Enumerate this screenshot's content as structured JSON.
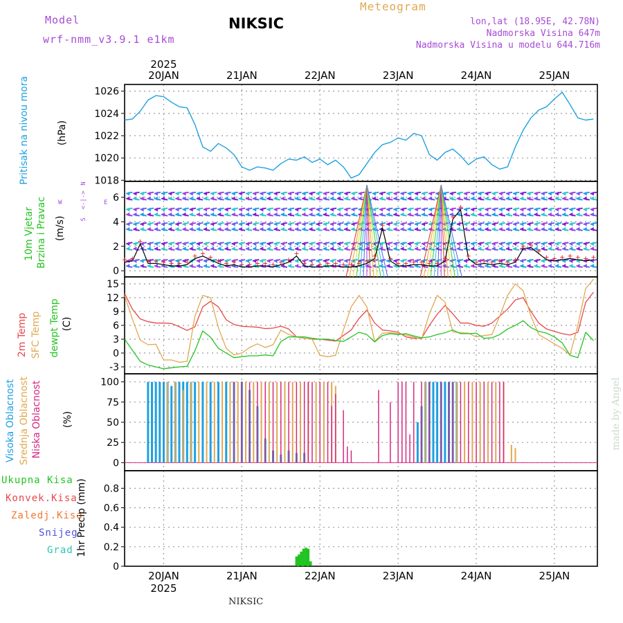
{
  "header": {
    "model_label": "Model",
    "model_name": "wrf-nmm_v3.9.1 e1km",
    "station": "NIKSIC",
    "meteogram": "Meteogram",
    "lonlat": "lon,lat (18.95E, 42.78N)",
    "elevation": "Nadmorska Visina 647m",
    "model_elevation": "Nadmorska Visina u modelu 644.716m",
    "footer_station": "NIKSIC",
    "watermark": "made by Angel",
    "colors": {
      "purple": "#a64ad6",
      "orange": "#e0a850",
      "black": "#000000"
    }
  },
  "time_axis": {
    "year_top": "2025",
    "year_bottom": "2025",
    "day_labels": [
      "20JAN",
      "21JAN",
      "22JAN",
      "23JAN",
      "24JAN",
      "25JAN"
    ],
    "day_positions": [
      0,
      1,
      2,
      3,
      4,
      5
    ],
    "range": [
      -0.5,
      5.55
    ]
  },
  "panels": {
    "pressure": {
      "ylabel": "Pritisak na nivou mora",
      "unit": "(hPa)",
      "ticks": [
        "1026",
        "1024",
        "1022",
        "1020",
        "1018"
      ],
      "tick_values": [
        1026,
        1024,
        1022,
        1020,
        1018
      ],
      "ylim": [
        1017.9,
        1026.6
      ],
      "color": "#1ea0e0"
    },
    "wind": {
      "ylabel1": "10m Vjetar",
      "ylabel2": "Brzina i Pravac",
      "unit": "(m/s)",
      "compass": {
        "n": "N",
        "e": "E",
        "w": "W",
        "arrow": "<-|->",
        "s": "S"
      },
      "ticks": [
        "6",
        "4",
        "2",
        "0"
      ],
      "tick_values": [
        6,
        4,
        2,
        0
      ],
      "ylim": [
        -0.5,
        7.3
      ],
      "colors": [
        "#1ea0e0",
        "#7f1fd6",
        "#2cc6c6",
        "#9b3fe0",
        "#6a5cf0"
      ],
      "line_color": "#000000",
      "gust_color": "#e03030"
    },
    "temperature": {
      "label_2m": "2m Temp",
      "label_sfc": "SFC Temp",
      "label_dew": "dewpt Temp",
      "unit": "(C)",
      "ticks": [
        "15",
        "12",
        "9",
        "6",
        "3",
        "0",
        "-3"
      ],
      "tick_values": [
        15,
        12,
        9,
        6,
        3,
        0,
        -3
      ],
      "ylim": [
        -4.5,
        16.5
      ],
      "colors": {
        "t2m": "#e8474a",
        "sfc": "#e0a850",
        "dew": "#22c422"
      }
    },
    "clouds": {
      "label_high": "Visoka Oblacnost",
      "label_mid": "Srednja Oblacnost",
      "label_low": "Niska Oblacnost",
      "unit": "(%)",
      "ticks": [
        "100",
        "75",
        "50",
        "25",
        "0"
      ],
      "tick_values": [
        100,
        75,
        50,
        25,
        0
      ],
      "ylim": [
        -10,
        110
      ],
      "colors": {
        "high": "#1ea0e0",
        "mid": "#e0a850",
        "low": "#d6287f"
      }
    },
    "precip": {
      "label_total": "Ukupna Kisa",
      "label_conv": "Konvek.Kisa",
      "label_frz": "Zaledj.Kisa",
      "label_snow": "Snijeg",
      "label_grad": "Grad",
      "unit": "1hr Precip (mm)",
      "ticks": [
        "0.8",
        "0.6",
        "0.4",
        "0.2",
        "0"
      ],
      "tick_values": [
        0.8,
        0.6,
        0.4,
        0.2,
        0
      ],
      "ylim": [
        0,
        0.98
      ],
      "colors": {
        "total": "#22c422",
        "conv": "#e8474a",
        "frz": "#f07830",
        "snow": "#5050e0",
        "grad": "#2cc6b0"
      }
    }
  },
  "chart_data": {
    "type": "line",
    "x_units": "days (0 = 20JAN 00h)",
    "pressure": {
      "x": [
        -0.5,
        -0.4,
        -0.3,
        -0.2,
        -0.1,
        0.0,
        0.1,
        0.2,
        0.3,
        0.4,
        0.5,
        0.6,
        0.7,
        0.8,
        0.9,
        1.0,
        1.1,
        1.2,
        1.3,
        1.4,
        1.5,
        1.6,
        1.7,
        1.8,
        1.9,
        2.0,
        2.1,
        2.2,
        2.3,
        2.4,
        2.5,
        2.6,
        2.7,
        2.8,
        2.9,
        3.0,
        3.1,
        3.2,
        3.3,
        3.4,
        3.5,
        3.6,
        3.7,
        3.8,
        3.9,
        4.0,
        4.1,
        4.2,
        4.3,
        4.4,
        4.5,
        4.6,
        4.7,
        4.8,
        4.9,
        5.0,
        5.1,
        5.2,
        5.3,
        5.4,
        5.5
      ],
      "values": [
        1023.4,
        1023.5,
        1024.2,
        1025.2,
        1025.6,
        1025.5,
        1025.0,
        1024.6,
        1024.5,
        1023.0,
        1021.0,
        1020.6,
        1021.3,
        1020.9,
        1020.3,
        1019.2,
        1018.9,
        1019.2,
        1019.1,
        1018.9,
        1019.5,
        1019.9,
        1019.8,
        1020.1,
        1019.6,
        1019.9,
        1019.4,
        1019.8,
        1019.2,
        1018.2,
        1018.5,
        1019.5,
        1020.5,
        1021.2,
        1021.4,
        1021.8,
        1021.6,
        1022.2,
        1022.0,
        1020.3,
        1019.8,
        1020.5,
        1020.8,
        1020.2,
        1019.4,
        1019.9,
        1020.1,
        1019.4,
        1019.0,
        1019.2,
        1021.0,
        1022.5,
        1023.6,
        1024.3,
        1024.6,
        1025.3,
        1025.9,
        1024.8,
        1023.6,
        1023.4,
        1023.5
      ]
    },
    "wind_speed": {
      "x": [
        -0.5,
        -0.4,
        -0.3,
        -0.2,
        -0.1,
        0.0,
        0.1,
        0.2,
        0.3,
        0.4,
        0.5,
        0.6,
        0.7,
        0.8,
        0.9,
        1.0,
        1.1,
        1.2,
        1.3,
        1.4,
        1.5,
        1.6,
        1.7,
        1.8,
        1.9,
        2.0,
        2.1,
        2.2,
        2.3,
        2.4,
        2.5,
        2.6,
        2.7,
        2.8,
        2.9,
        3.0,
        3.1,
        3.2,
        3.3,
        3.4,
        3.5,
        3.6,
        3.7,
        3.8,
        3.9,
        4.0,
        4.1,
        4.2,
        4.3,
        4.4,
        4.5,
        4.6,
        4.7,
        4.8,
        4.9,
        5.0,
        5.1,
        5.2,
        5.3,
        5.4,
        5.5
      ],
      "values": [
        0.7,
        0.8,
        2.2,
        0.6,
        0.6,
        0.5,
        0.4,
        0.4,
        0.5,
        1.0,
        1.2,
        0.9,
        0.6,
        0.4,
        0.5,
        0.3,
        0.3,
        0.4,
        0.4,
        0.3,
        0.5,
        0.7,
        1.2,
        0.4,
        0.3,
        0.3,
        0.4,
        0.4,
        0.3,
        0.3,
        0.4,
        0.6,
        1.0,
        3.5,
        0.8,
        0.4,
        0.4,
        0.5,
        0.5,
        0.4,
        0.4,
        0.8,
        4.2,
        5.0,
        1.0,
        0.5,
        0.6,
        0.5,
        0.6,
        0.5,
        0.7,
        1.8,
        1.9,
        1.4,
        0.9,
        0.8,
        0.9,
        1.0,
        0.9,
        0.8,
        0.9
      ]
    },
    "temperature": {
      "x": [
        -0.5,
        -0.4,
        -0.3,
        -0.2,
        -0.1,
        0.0,
        0.1,
        0.2,
        0.3,
        0.4,
        0.5,
        0.6,
        0.7,
        0.8,
        0.9,
        1.0,
        1.1,
        1.2,
        1.3,
        1.4,
        1.5,
        1.6,
        1.7,
        1.8,
        1.9,
        2.0,
        2.1,
        2.2,
        2.3,
        2.4,
        2.5,
        2.6,
        2.7,
        2.8,
        2.9,
        3.0,
        3.1,
        3.2,
        3.3,
        3.4,
        3.5,
        3.6,
        3.7,
        3.8,
        3.9,
        4.0,
        4.1,
        4.2,
        4.3,
        4.4,
        4.5,
        4.6,
        4.7,
        4.8,
        4.9,
        5.0,
        5.1,
        5.2,
        5.3,
        5.4,
        5.5
      ],
      "t2m": [
        12.9,
        9.5,
        7.4,
        6.8,
        6.5,
        6.5,
        6.4,
        5.7,
        4.9,
        5.7,
        10.0,
        11.2,
        10.0,
        7.2,
        6.2,
        5.8,
        5.7,
        5.6,
        5.3,
        5.4,
        5.8,
        5.2,
        3.5,
        3.2,
        3.0,
        3.0,
        2.8,
        2.6,
        3.8,
        5.0,
        7.5,
        9.3,
        6.5,
        5.0,
        4.8,
        4.5,
        3.5,
        3.2,
        3.2,
        6.0,
        8.4,
        10.3,
        8.5,
        6.5,
        6.5,
        6.0,
        5.8,
        6.5,
        8.0,
        9.5,
        11.5,
        12.0,
        9.0,
        6.5,
        5.2,
        4.7,
        4.2,
        3.9,
        4.5,
        11.0,
        13.2
      ],
      "sfc": [
        12.5,
        7.3,
        2.8,
        1.8,
        1.9,
        -1.5,
        -1.5,
        -2.0,
        -1.8,
        8.0,
        12.5,
        12.0,
        5.5,
        1.0,
        -0.4,
        0.0,
        1.2,
        2.0,
        1.2,
        1.8,
        5.0,
        4.0,
        3.5,
        3.2,
        3.0,
        -0.5,
        -0.8,
        -0.5,
        5.0,
        10.0,
        12.5,
        10.0,
        2.5,
        4.3,
        4.4,
        4.2,
        3.9,
        3.5,
        3.0,
        8.5,
        12.5,
        11.0,
        4.6,
        4.4,
        4.3,
        3.5,
        3.8,
        4.0,
        8.0,
        12.5,
        15.0,
        13.5,
        8.0,
        4.0,
        3.0,
        2.0,
        1.0,
        -0.4,
        6.0,
        14.0,
        16.0
      ],
      "dew": [
        3.0,
        0.6,
        -1.8,
        -2.6,
        -3.0,
        -3.4,
        -3.2,
        -3.0,
        -2.9,
        0.5,
        4.8,
        3.4,
        1.0,
        0.0,
        -1.0,
        -0.8,
        -0.6,
        -0.6,
        -0.4,
        -0.6,
        2.5,
        3.5,
        3.5,
        3.5,
        3.2,
        3.0,
        3.0,
        2.7,
        2.5,
        3.5,
        4.5,
        4.0,
        2.4,
        3.8,
        4.2,
        4.0,
        4.2,
        3.7,
        3.3,
        3.5,
        4.0,
        4.4,
        5.0,
        4.2,
        4.2,
        4.3,
        3.2,
        3.3,
        4.0,
        5.2,
        6.0,
        7.0,
        5.5,
        4.7,
        4.3,
        3.5,
        2.2,
        -0.5,
        -1.0,
        4.5,
        2.7
      ]
    },
    "clouds": {
      "high": {
        "x": [
          -0.2,
          -0.15,
          -0.1,
          -0.05,
          0.0,
          0.05,
          0.1,
          0.15,
          0.2,
          0.25,
          0.3,
          0.35,
          0.4,
          0.5,
          0.6,
          0.7,
          0.8,
          0.9,
          1.0,
          1.1,
          1.2,
          1.3,
          1.4,
          1.5,
          1.6,
          1.7,
          1.8,
          3.25,
          3.3,
          3.35,
          3.4,
          3.45,
          3.5,
          3.55,
          3.6,
          3.65,
          3.7,
          3.75
        ],
        "values": [
          100,
          100,
          100,
          100,
          100,
          100,
          95,
          100,
          100,
          100,
          100,
          100,
          100,
          100,
          100,
          100,
          100,
          100,
          100,
          90,
          70,
          30,
          15,
          10,
          15,
          12,
          12,
          50,
          70,
          100,
          100,
          100,
          100,
          100,
          100,
          100,
          100,
          100
        ]
      },
      "mid": {
        "x": [
          0.05,
          0.15,
          0.25,
          0.35,
          0.45,
          0.55,
          0.65,
          0.75,
          0.85,
          0.95,
          1.05,
          1.15,
          1.25,
          1.35,
          1.45,
          1.55,
          1.65,
          1.75,
          1.85,
          1.95,
          2.05,
          2.15,
          2.2,
          3.35,
          3.75,
          3.85,
          3.95,
          4.05,
          4.15,
          4.25,
          4.35,
          4.45,
          4.5
        ],
        "values": [
          100,
          100,
          90,
          100,
          100,
          100,
          100,
          100,
          100,
          100,
          100,
          100,
          100,
          100,
          100,
          100,
          100,
          100,
          100,
          100,
          100,
          100,
          95,
          100,
          100,
          100,
          100,
          100,
          100,
          100,
          100,
          22,
          18
        ]
      },
      "low": {
        "x": [
          0.9,
          1.0,
          1.1,
          1.2,
          1.3,
          1.4,
          1.5,
          1.6,
          1.7,
          1.8,
          1.85,
          1.9,
          2.0,
          2.1,
          2.15,
          2.2,
          2.3,
          2.35,
          2.4,
          2.75,
          2.9,
          3.0,
          3.05,
          3.1,
          3.15,
          3.2,
          3.3,
          3.4,
          3.55,
          3.65,
          3.7,
          3.8,
          3.9,
          4.0,
          4.1,
          4.2,
          4.3,
          4.35
        ],
        "values": [
          100,
          100,
          100,
          100,
          100,
          100,
          100,
          100,
          100,
          100,
          100,
          100,
          100,
          100,
          70,
          85,
          65,
          20,
          15,
          90,
          75,
          100,
          100,
          100,
          35,
          100,
          100,
          100,
          100,
          100,
          100,
          100,
          100,
          100,
          100,
          100,
          100,
          100
        ]
      }
    },
    "precip": {
      "total": {
        "x": [
          1.7,
          1.73,
          1.76,
          1.79,
          1.82,
          1.85,
          1.88
        ],
        "values": [
          0.1,
          0.12,
          0.15,
          0.18,
          0.19,
          0.18,
          0.05
        ]
      }
    },
    "wind_barbs": {
      "rows": [
        6.3,
        5.9,
        5.0,
        4.6,
        3.8,
        3.4,
        2.2,
        1.8,
        0.8,
        0.4
      ],
      "x_start": -0.48,
      "x_step": 0.09
    }
  }
}
